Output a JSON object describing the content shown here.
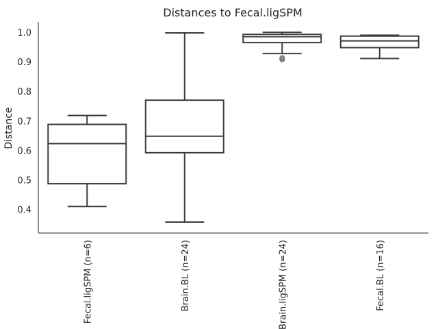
{
  "chart_data": {
    "type": "box",
    "title": "Distances to Fecal.ligSPM",
    "xlabel": "",
    "ylabel": "Distance",
    "ylim": [
      0.32,
      1.035
    ],
    "yticks": [
      "0.4",
      "0.5",
      "0.6",
      "0.7",
      "0.8",
      "0.9",
      "1.0"
    ],
    "categories": [
      "Fecal.ligSPM (n=6)",
      "Brain.BL (n=24)",
      "Brain.ligSPM (n=24)",
      "Fecal.BL (n=16)"
    ],
    "boxes": [
      {
        "whisker_low": 0.41,
        "q1": 0.487,
        "median": 0.623,
        "q3": 0.688,
        "whisker_high": 0.718,
        "outliers": []
      },
      {
        "whisker_low": 0.357,
        "q1": 0.592,
        "median": 0.648,
        "q3": 0.77,
        "whisker_high": 0.998,
        "outliers": []
      },
      {
        "whisker_low": 0.928,
        "q1": 0.965,
        "median": 0.985,
        "q3": 0.993,
        "whisker_high": 1.0,
        "outliers": [
          0.908,
          0.913
        ]
      },
      {
        "whisker_low": 0.911,
        "q1": 0.948,
        "median": 0.971,
        "q3": 0.987,
        "whisker_high": 0.99,
        "outliers": []
      }
    ],
    "grid": false,
    "legend": "none"
  }
}
